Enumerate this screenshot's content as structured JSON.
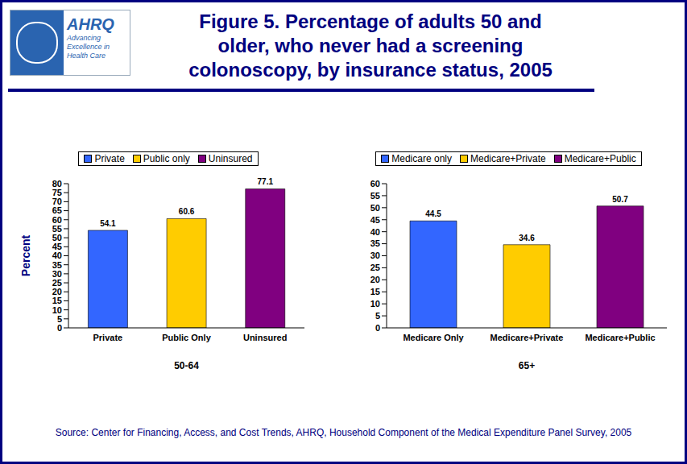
{
  "title": "Figure 5. Percentage of adults 50 and older, who never had a screening colonoscopy, by insurance status, 2005",
  "logo": {
    "name": "AHRQ",
    "tagline": [
      "Advancing",
      "Excellence in",
      "Health Care"
    ]
  },
  "source": "Source: Center for Financing, Access, and Cost Trends, AHRQ, Household Component of the Medical Expenditure Panel Survey, 2005",
  "chart_data": [
    {
      "type": "bar",
      "categories": [
        "Private",
        "Public Only",
        "Uninsured"
      ],
      "x_label": "50-64",
      "y_label": "Percent",
      "series": [
        {
          "name": "Private",
          "color": "#3366FF",
          "values": [
            54.1,
            null,
            null
          ]
        },
        {
          "name": "Public only",
          "color": "#FFCC00",
          "values": [
            null,
            60.6,
            null
          ]
        },
        {
          "name": "Uninsured",
          "color": "#800080",
          "values": [
            null,
            null,
            77.1
          ]
        }
      ],
      "stacked": true,
      "data_labels": true,
      "legend": "top",
      "ylim": [
        0,
        80
      ],
      "yticks": [
        0,
        5,
        10,
        15,
        20,
        25,
        30,
        35,
        40,
        45,
        50,
        55,
        60,
        65,
        70,
        75,
        80
      ]
    },
    {
      "type": "bar",
      "categories": [
        "Medicare Only",
        "Medicare+Private",
        "Medicare+Public"
      ],
      "x_label": "65+",
      "series": [
        {
          "name": "Medicare only",
          "color": "#3366FF",
          "values": [
            44.5,
            null,
            null
          ]
        },
        {
          "name": "Medicare+Private",
          "color": "#FFCC00",
          "values": [
            null,
            34.6,
            null
          ]
        },
        {
          "name": "Medicare+Public",
          "color": "#800080",
          "values": [
            null,
            null,
            50.7
          ]
        }
      ],
      "stacked": true,
      "data_labels": true,
      "legend": "top",
      "ylim": [
        0,
        60
      ],
      "yticks": [
        0,
        5,
        10,
        15,
        20,
        25,
        30,
        35,
        40,
        45,
        50,
        55,
        60
      ]
    }
  ]
}
